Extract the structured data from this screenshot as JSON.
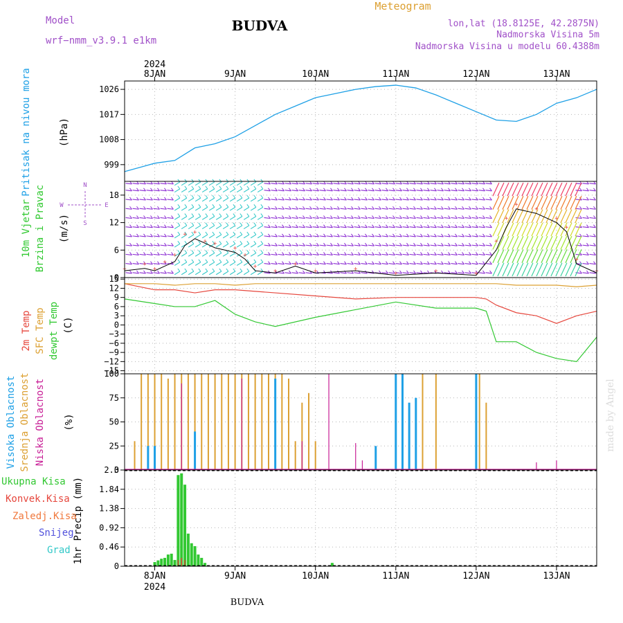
{
  "header": {
    "model_label": "Model",
    "model_name": "wrf−nmm_v3.9.1  e1km",
    "title": "BUDVA",
    "meteogram": "Meteogram",
    "lonlat": "lon,lat (18.8125E, 42.2875N)",
    "elev": "Nadmorska Visina 5m",
    "elev_model": "Nadmorska Visina u modelu 60.4388m",
    "footer_title": "BUDVA",
    "watermark": "made by Angel"
  },
  "colors": {
    "pressure": "#1ea0e6",
    "wind_label": "#2ec82e",
    "temp2m": "#e6463c",
    "sfc": "#dca032",
    "dewpt": "#32c832",
    "high_cloud": "#1ea0e6",
    "mid_cloud": "#dca032",
    "low_cloud": "#c81e96",
    "total_rain": "#32c832",
    "conv_rain": "#e6463c",
    "frz_rain": "#f0783c",
    "snow": "#5050dc",
    "hail": "#32c8c8",
    "purple": "#a050c8"
  },
  "time_axis": {
    "year": "2024",
    "day_labels": [
      "8JAN",
      "9JAN",
      "10JAN",
      "11JAN",
      "12JAN",
      "13JAN"
    ],
    "start": "2024-01-07T15:00",
    "end": "2024-01-13T12:00"
  },
  "chart_data": [
    {
      "type": "line",
      "panel": "pressure",
      "ylabel": "Pritisak na nivou mora",
      "unit": "(hPa)",
      "yticks": [
        "999",
        "1008",
        "1017",
        "1026"
      ],
      "ylim": [
        993,
        1029
      ],
      "x": [
        "2024-01-07T15:00",
        "2024-01-07T21:00",
        "2024-01-08T00:00",
        "2024-01-08T06:00",
        "2024-01-08T12:00",
        "2024-01-08T18:00",
        "2024-01-09T00:00",
        "2024-01-09T06:00",
        "2024-01-09T12:00",
        "2024-01-09T18:00",
        "2024-01-10T00:00",
        "2024-01-10T06:00",
        "2024-01-10T12:00",
        "2024-01-10T18:00",
        "2024-01-11T00:00",
        "2024-01-11T06:00",
        "2024-01-11T12:00",
        "2024-01-11T18:00",
        "2024-01-12T00:00",
        "2024-01-12T06:00",
        "2024-01-12T12:00",
        "2024-01-12T18:00",
        "2024-01-13T00:00",
        "2024-01-13T06:00",
        "2024-01-13T12:00"
      ],
      "values": [
        996.5,
        998.5,
        999.5,
        1000.5,
        1005,
        1006.5,
        1009,
        1013,
        1017,
        1020,
        1023,
        1024.5,
        1026,
        1027,
        1027.5,
        1026.5,
        1024,
        1021,
        1018,
        1015,
        1014.5,
        1017,
        1021,
        1023,
        1026
      ]
    },
    {
      "type": "line",
      "panel": "wind",
      "ylabel": [
        "10m Vjetar",
        "Brzina i Pravac"
      ],
      "unit": "(m/s)",
      "direction_key": [
        "N",
        "E",
        "W",
        "S"
      ],
      "yticks": [
        "0",
        "6",
        "12",
        "18"
      ],
      "ylim": [
        0,
        21
      ],
      "x": [
        "2024-01-07T15:00",
        "2024-01-07T21:00",
        "2024-01-08T00:00",
        "2024-01-08T03:00",
        "2024-01-08T06:00",
        "2024-01-08T09:00",
        "2024-01-08T12:00",
        "2024-01-08T15:00",
        "2024-01-08T18:00",
        "2024-01-09T00:00",
        "2024-01-09T03:00",
        "2024-01-09T06:00",
        "2024-01-09T12:00",
        "2024-01-09T18:00",
        "2024-01-10T00:00",
        "2024-01-10T12:00",
        "2024-01-11T00:00",
        "2024-01-11T12:00",
        "2024-01-12T00:00",
        "2024-01-12T06:00",
        "2024-01-12T09:00",
        "2024-01-12T12:00",
        "2024-01-12T18:00",
        "2024-01-13T00:00",
        "2024-01-13T03:00",
        "2024-01-13T06:00",
        "2024-01-13T12:00"
      ],
      "series": [
        {
          "name": "speed",
          "values": [
            1.5,
            2,
            1.5,
            2.5,
            3.5,
            7,
            8.5,
            7.5,
            6.5,
            5.5,
            4,
            1.5,
            1,
            2.5,
            1,
            1.5,
            0.5,
            1,
            0.5,
            6,
            11,
            15,
            14,
            12,
            10,
            3,
            1
          ]
        },
        {
          "name": "gust",
          "values": [
            2,
            3,
            2,
            3.5,
            5,
            9.5,
            10,
            8,
            7.5,
            6.5,
            5,
            2.5,
            1.5,
            3,
            1.5,
            2,
            1,
            1.5,
            1,
            8,
            13,
            16,
            15,
            13,
            11,
            4,
            1.5
          ]
        }
      ]
    },
    {
      "type": "line",
      "panel": "temperature",
      "ylabel": [
        "2m Temp",
        "SFC Temp",
        "dewpt Temp"
      ],
      "unit": "(C)",
      "yticks": [
        "15",
        "12",
        "9",
        "6",
        "3",
        "0",
        "−3",
        "−6",
        "−9",
        "−12",
        "−15"
      ],
      "ylim": [
        -16,
        15.5
      ],
      "x": [
        "2024-01-07T15:00",
        "2024-01-08T00:00",
        "2024-01-08T06:00",
        "2024-01-08T12:00",
        "2024-01-08T18:00",
        "2024-01-09T00:00",
        "2024-01-09T06:00",
        "2024-01-09T12:00",
        "2024-01-10T00:00",
        "2024-01-10T12:00",
        "2024-01-11T00:00",
        "2024-01-11T12:00",
        "2024-01-12T00:00",
        "2024-01-12T03:00",
        "2024-01-12T06:00",
        "2024-01-12T12:00",
        "2024-01-12T18:00",
        "2024-01-13T00:00",
        "2024-01-13T06:00",
        "2024-01-13T12:00"
      ],
      "series": [
        {
          "name": "2m Temp",
          "values": [
            13.5,
            11.5,
            11.5,
            10.5,
            11.5,
            11.5,
            11,
            10.5,
            9.5,
            8.5,
            9,
            9,
            9,
            8.5,
            6.5,
            4,
            3,
            0.5,
            3,
            4.5
          ]
        },
        {
          "name": "SFC Temp",
          "values": [
            13.5,
            13.5,
            13,
            13.5,
            13.5,
            13,
            13.5,
            13.5,
            13.5,
            13.5,
            13.5,
            13.5,
            13.5,
            13.5,
            13.5,
            13,
            13,
            13,
            12.5,
            13
          ]
        },
        {
          "name": "dewpt Temp",
          "values": [
            8.5,
            7,
            6,
            6,
            8,
            3.5,
            1,
            -0.5,
            2.5,
            5,
            7.5,
            5.5,
            5.5,
            4.5,
            -5.5,
            -5.5,
            -9,
            -11,
            -12,
            -4
          ]
        }
      ]
    },
    {
      "type": "bar",
      "panel": "cloud",
      "ylabel": [
        "Visoka Oblacnost",
        "Srednja Oblacnost",
        "Niska Oblacnost"
      ],
      "unit": "(%)",
      "yticks": [
        "0",
        "25",
        "50",
        "75",
        "100"
      ],
      "ylim": [
        0,
        100
      ],
      "series": [
        {
          "name": "Srednja Oblacnost",
          "x": [
            "2024-01-07T18:00",
            "2024-01-07T20:00",
            "2024-01-07T22:00",
            "2024-01-08T00:00",
            "2024-01-08T02:00",
            "2024-01-08T04:00",
            "2024-01-08T06:00",
            "2024-01-08T08:00",
            "2024-01-08T10:00",
            "2024-01-08T12:00",
            "2024-01-08T14:00",
            "2024-01-08T16:00",
            "2024-01-08T18:00",
            "2024-01-08T20:00",
            "2024-01-08T22:00",
            "2024-01-09T00:00",
            "2024-01-09T02:00",
            "2024-01-09T04:00",
            "2024-01-09T06:00",
            "2024-01-09T08:00",
            "2024-01-09T10:00",
            "2024-01-09T12:00",
            "2024-01-09T14:00",
            "2024-01-09T16:00",
            "2024-01-09T18:00",
            "2024-01-09T20:00",
            "2024-01-09T22:00",
            "2024-01-10T00:00",
            "2024-01-11T08:00",
            "2024-01-11T12:00",
            "2024-01-12T01:00",
            "2024-01-12T03:00"
          ],
          "values": [
            30,
            100,
            100,
            100,
            100,
            95,
            100,
            100,
            100,
            100,
            100,
            100,
            100,
            100,
            100,
            100,
            100,
            100,
            100,
            100,
            100,
            100,
            100,
            95,
            30,
            70,
            80,
            30,
            100,
            100,
            100,
            70
          ]
        },
        {
          "name": "Visoka Oblacnost",
          "x": [
            "2024-01-07T22:00",
            "2024-01-08T00:00",
            "2024-01-08T12:00",
            "2024-01-09T12:00",
            "2024-01-10T18:00",
            "2024-01-11T00:00",
            "2024-01-11T02:00",
            "2024-01-11T04:00",
            "2024-01-11T06:00",
            "2024-01-12T00:00"
          ],
          "values": [
            25,
            25,
            40,
            95,
            25,
            100,
            100,
            70,
            75,
            100
          ]
        },
        {
          "name": "Niska Oblacnost",
          "x": [
            "2024-01-08T08:00",
            "2024-01-09T02:00",
            "2024-01-09T20:00",
            "2024-01-10T04:00",
            "2024-01-10T12:00",
            "2024-01-10T14:00",
            "2024-01-12T18:00",
            "2024-01-13T00:00"
          ],
          "values": [
            90,
            95,
            30,
            100,
            28,
            10,
            8,
            10
          ]
        }
      ]
    },
    {
      "type": "bar",
      "panel": "precipitation",
      "ylabel": "1hr Precip (mm)",
      "legend": [
        "Ukupna  Kisa",
        "Konvek.Kisa",
        "Zaledj.Kisa",
        "Snijeg",
        "Grad"
      ],
      "yticks": [
        "0",
        "0.46",
        "0.92",
        "1.38",
        "1.84",
        "2.3"
      ],
      "ylim": [
        0,
        2.3
      ],
      "x": [
        "2024-01-08T00:00",
        "2024-01-08T01:00",
        "2024-01-08T02:00",
        "2024-01-08T03:00",
        "2024-01-08T04:00",
        "2024-01-08T05:00",
        "2024-01-08T06:00",
        "2024-01-08T07:00",
        "2024-01-08T08:00",
        "2024-01-08T09:00",
        "2024-01-08T10:00",
        "2024-01-08T11:00",
        "2024-01-08T12:00",
        "2024-01-08T13:00",
        "2024-01-08T14:00",
        "2024-01-08T15:00",
        "2024-01-10T05:00"
      ],
      "series": [
        {
          "name": "Ukupna  Kisa",
          "values": [
            0.1,
            0.14,
            0.18,
            0.2,
            0.28,
            0.3,
            0.15,
            2.18,
            2.22,
            1.95,
            0.78,
            0.55,
            0.48,
            0.28,
            0.2,
            0.08,
            0.08
          ]
        },
        {
          "name": "Konvek.Kisa",
          "values": [
            0,
            0,
            0,
            0,
            0,
            0,
            0,
            0.15,
            0.2,
            0.15,
            0,
            0,
            0,
            0,
            0,
            0,
            0
          ]
        }
      ]
    }
  ]
}
